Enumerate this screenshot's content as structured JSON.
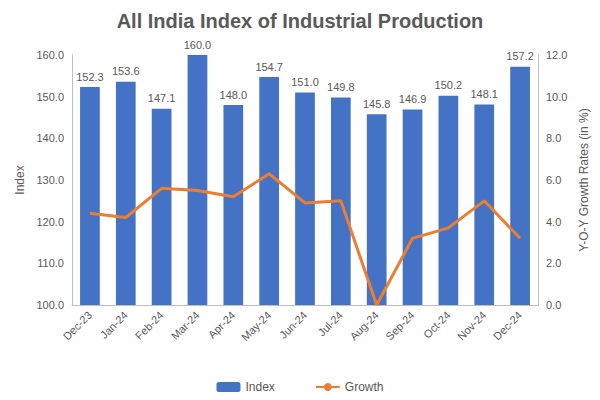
{
  "chart_data": {
    "type": "bar",
    "title": "All India Index of Industrial Production",
    "categories": [
      "Dec-23",
      "Jan-24",
      "Feb-24",
      "Mar-24",
      "Apr-24",
      "May-24",
      "Jun-24",
      "Jul-24",
      "Aug-24",
      "Sep-24",
      "Oct-24",
      "Nov-24",
      "Dec-24"
    ],
    "y_label": "Index",
    "y2_label": "Y-O-Y Growth Rates (in %)",
    "series": [
      {
        "name": "Index",
        "type": "bar",
        "color": "#4472c4",
        "data_labels": true,
        "values": [
          152.3,
          153.6,
          147.1,
          160.0,
          148.0,
          154.7,
          151.0,
          149.8,
          145.8,
          146.9,
          150.2,
          148.1,
          157.2
        ],
        "value_labels": [
          "152.3",
          "153.6",
          "147.1",
          "160.0",
          "148.0",
          "154.7",
          "151.0",
          "149.8",
          "145.8",
          "146.9",
          "150.2",
          "148.1",
          "157.2"
        ]
      },
      {
        "name": "Growth",
        "type": "line",
        "color": "#ed7d31",
        "axis": "y2",
        "marker": "none",
        "values": [
          4.4,
          4.2,
          5.6,
          5.5,
          5.2,
          6.3,
          4.9,
          5.0,
          0.0,
          3.2,
          3.7,
          5.0,
          3.2
        ]
      }
    ],
    "ylim": [
      100,
      160
    ],
    "yticks": [
      {
        "value": 100,
        "label": "100.0"
      },
      {
        "value": 110,
        "label": "110.0"
      },
      {
        "value": 120,
        "label": "120.0"
      },
      {
        "value": 130,
        "label": "130.0"
      },
      {
        "value": 140,
        "label": "140.0"
      },
      {
        "value": 150,
        "label": "150.0"
      },
      {
        "value": 160,
        "label": "160.0"
      }
    ],
    "y2lim": [
      0,
      12
    ],
    "y2ticks": [
      {
        "value": 0,
        "label": "0.0"
      },
      {
        "value": 2,
        "label": "2.0"
      },
      {
        "value": 4,
        "label": "4.0"
      },
      {
        "value": 6,
        "label": "6.0"
      },
      {
        "value": 8,
        "label": "8.0"
      },
      {
        "value": 10,
        "label": "10.0"
      },
      {
        "value": 12,
        "label": "12.0"
      }
    ],
    "grid": false,
    "legend": "bottom"
  }
}
